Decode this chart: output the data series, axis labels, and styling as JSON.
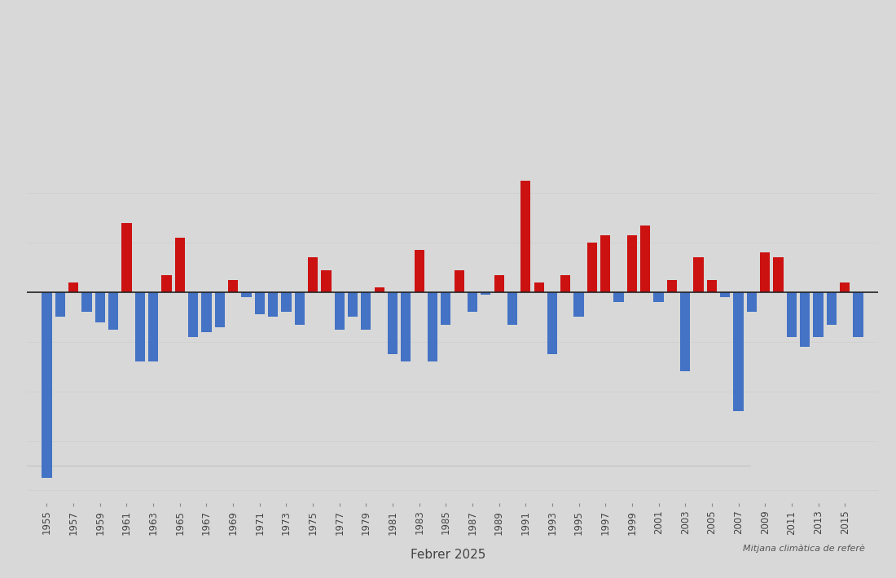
{
  "years": [
    1955,
    1956,
    1957,
    1958,
    1959,
    1960,
    1961,
    1962,
    1963,
    1964,
    1965,
    1966,
    1967,
    1968,
    1969,
    1970,
    1971,
    1972,
    1973,
    1974,
    1975,
    1976,
    1977,
    1978,
    1979,
    1980,
    1981,
    1982,
    1983,
    1984,
    1985,
    1986,
    1987,
    1988,
    1989,
    1990,
    1991,
    1992,
    1993,
    1994,
    1995,
    1996,
    1997,
    1998,
    1999,
    2000,
    2001,
    2002,
    2003,
    2004,
    2005,
    2006,
    2007,
    2008,
    2009,
    2010,
    2011,
    2012,
    2013,
    2014,
    2015,
    2016
  ],
  "anomalies": [
    -7.5,
    -1.0,
    0.4,
    -0.8,
    -1.2,
    -1.5,
    2.8,
    -2.8,
    -2.8,
    0.7,
    2.2,
    -1.8,
    -1.6,
    -1.4,
    0.5,
    -0.2,
    -0.9,
    -1.0,
    -0.8,
    -1.3,
    1.4,
    0.9,
    -1.5,
    -1.0,
    -1.5,
    0.2,
    -2.5,
    -2.8,
    1.7,
    -2.8,
    -1.3,
    0.9,
    -0.8,
    -0.1,
    0.7,
    -1.3,
    4.5,
    0.4,
    -2.5,
    0.7,
    -1.0,
    2.0,
    2.3,
    -0.4,
    2.3,
    2.7,
    -0.4,
    0.5,
    -3.2,
    1.4,
    0.5,
    -0.2,
    -4.8,
    -0.8,
    1.6,
    1.4,
    -1.8,
    -2.2,
    -1.8,
    -1.3,
    0.4,
    -1.8
  ],
  "pos_color": "#cc1111",
  "neg_color": "#4472c4",
  "zero_line_color": "#222222",
  "grid_color": "#d0d0d0",
  "background_color": "#d8d8d8",
  "plot_bg_color": "#d8d8d8",
  "xlabel": "Febrer 2025",
  "reference_label": "Mitjana climàtica de referè",
  "xlabel_fontsize": 11,
  "tick_fontsize": 8.5,
  "ylim_min": -8.5,
  "ylim_max": 5.5
}
